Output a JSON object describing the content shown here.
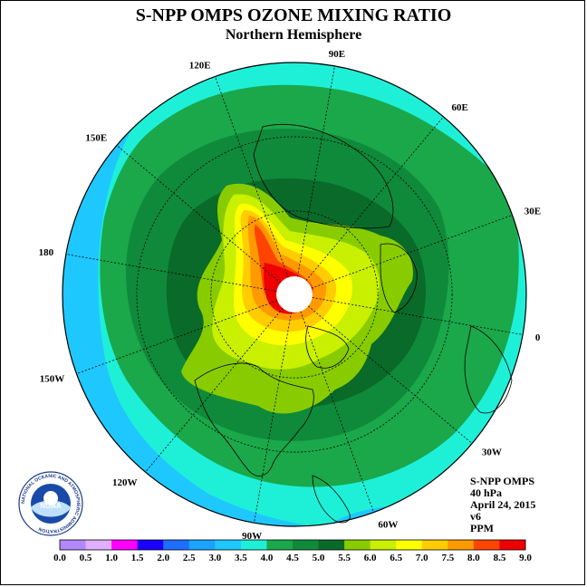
{
  "header": {
    "title": "S-NPP OMPS OZONE MIXING RATIO",
    "subtitle": "Northern Hemisphere"
  },
  "map": {
    "longitude_labels": [
      {
        "text": "90E",
        "lon": 90
      },
      {
        "text": "60E",
        "lon": 60
      },
      {
        "text": "30E",
        "lon": 30
      },
      {
        "text": "0",
        "lon": 0
      },
      {
        "text": "30W",
        "lon": -30
      },
      {
        "text": "60W",
        "lon": -60
      },
      {
        "text": "90W",
        "lon": -90
      },
      {
        "text": "120W",
        "lon": -120
      },
      {
        "text": "150W",
        "lon": -150
      },
      {
        "text": "180",
        "lon": 180
      },
      {
        "text": "150E",
        "lon": 150
      },
      {
        "text": "120E",
        "lon": 120
      }
    ]
  },
  "info": {
    "product": "S-NPP OMPS",
    "level": "40 hPa",
    "date": "April 24, 2015",
    "version": "v6",
    "units": "PPM"
  },
  "colorbar": {
    "ticks": [
      "0.0",
      "0.5",
      "1.0",
      "1.5",
      "2.0",
      "2.5",
      "3.0",
      "3.5",
      "4.0",
      "4.5",
      "5.0",
      "5.5",
      "6.0",
      "6.5",
      "7.0",
      "7.5",
      "8.0",
      "8.5",
      "9.0"
    ],
    "colors": [
      "#b388ff",
      "#e0b0ff",
      "#ff00ff",
      "#1a00ff",
      "#1f6fff",
      "#1aa3ff",
      "#1ec8ff",
      "#1ef0d8",
      "#1aa84a",
      "#0f8a3a",
      "#0a6a2a",
      "#88cc00",
      "#c8f000",
      "#ffff00",
      "#ffcc00",
      "#ff9900",
      "#ff4400",
      "#ee0000",
      "#8b4513"
    ]
  },
  "logo": {
    "text": "NOAA",
    "ring_text": "NATIONAL OCEANIC AND ATMOSPHERIC ADMINISTRATION"
  }
}
